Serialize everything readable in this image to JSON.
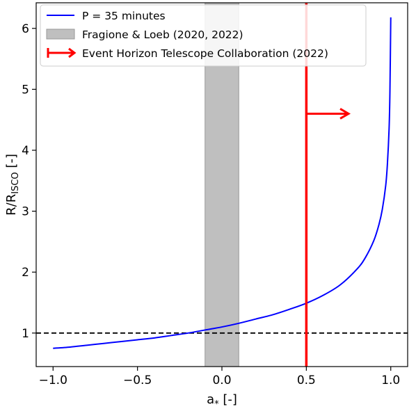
{
  "chart_data": {
    "type": "line",
    "title": "",
    "xlabel": {
      "main": "a",
      "sub": "*",
      "unit": "[-]"
    },
    "ylabel": {
      "main": "R/R",
      "sub": "ISCO",
      "unit": "[-]"
    },
    "xlim": [
      -1.1,
      1.1
    ],
    "ylim": [
      0.45,
      6.42
    ],
    "xticks": [
      -1.0,
      -0.5,
      0.0,
      0.5,
      1.0
    ],
    "xtick_labels": [
      "−1.0",
      "−0.5",
      "0.0",
      "0.5",
      "1.0"
    ],
    "yticks": [
      1,
      2,
      3,
      4,
      5,
      6
    ],
    "ytick_labels": [
      "1",
      "2",
      "3",
      "4",
      "5",
      "6"
    ],
    "grid": false,
    "legend_position": "top-left",
    "series": [
      {
        "name": "P = 35 minutes",
        "color": "#0000ff",
        "x": [
          -1.0,
          -0.9,
          -0.8,
          -0.7,
          -0.6,
          -0.5,
          -0.4,
          -0.3,
          -0.2,
          -0.1,
          0.0,
          0.1,
          0.2,
          0.3,
          0.4,
          0.5,
          0.6,
          0.7,
          0.8,
          0.85,
          0.9,
          0.93,
          0.95,
          0.97,
          0.98,
          0.99,
          0.995,
          1.0
        ],
        "y": [
          0.75,
          0.77,
          0.8,
          0.83,
          0.86,
          0.89,
          0.92,
          0.96,
          1.0,
          1.05,
          1.1,
          1.16,
          1.23,
          1.3,
          1.39,
          1.49,
          1.62,
          1.79,
          2.05,
          2.24,
          2.52,
          2.78,
          3.03,
          3.42,
          3.77,
          4.35,
          4.95,
          6.18
        ]
      }
    ],
    "reference_line": {
      "y": 1.0,
      "style": "dashed",
      "color": "#000000"
    },
    "shaded_band": {
      "name": "Fragione & Loeb (2020, 2022)",
      "x_range": [
        -0.1,
        0.1
      ],
      "color": "#bfbfbf",
      "edge_color": "#999999"
    },
    "constraint_line": {
      "name": "Event Horizon Telescope Collaboration (2022)",
      "x": 0.5,
      "color": "#ff0000",
      "arrow_y": 4.6,
      "arrow_to_x": 0.75
    }
  }
}
